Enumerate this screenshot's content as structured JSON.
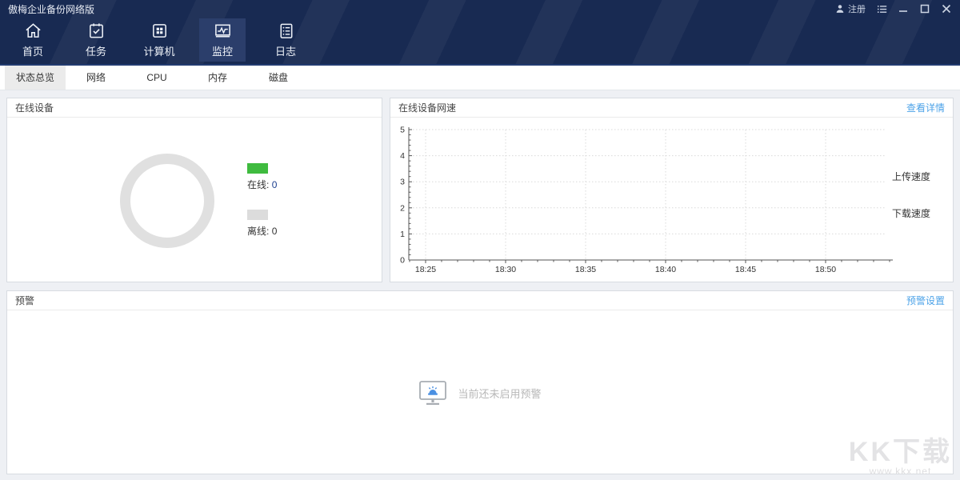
{
  "window": {
    "title": "傲梅企业备份网络版",
    "register_label": "注册"
  },
  "nav": {
    "items": [
      {
        "label": "首页",
        "icon": "home-icon",
        "selected": false
      },
      {
        "label": "任务",
        "icon": "tasks-icon",
        "selected": false
      },
      {
        "label": "计算机",
        "icon": "computers-icon",
        "selected": false
      },
      {
        "label": "监控",
        "icon": "monitor-icon",
        "selected": true
      },
      {
        "label": "日志",
        "icon": "logs-icon",
        "selected": false
      }
    ]
  },
  "tabs": {
    "items": [
      {
        "label": "状态总览",
        "selected": true
      },
      {
        "label": "网络",
        "selected": false
      },
      {
        "label": "CPU",
        "selected": false
      },
      {
        "label": "内存",
        "selected": false
      },
      {
        "label": "磁盘",
        "selected": false
      }
    ]
  },
  "devices_panel": {
    "title": "在线设备",
    "legend": [
      {
        "label": "在线:",
        "value": "0",
        "color": "#3fbb3f",
        "value_color": "#1d3f8f"
      },
      {
        "label": "离线:",
        "value": "0",
        "color": "#dcdcdc",
        "value_color": "#333333"
      }
    ]
  },
  "netspeed_panel": {
    "title": "在线设备网速",
    "details_link": "查看详情",
    "legend": [
      "上传速度",
      "下载速度"
    ]
  },
  "alert_panel": {
    "title": "预警",
    "settings_link": "预警设置",
    "empty_text": "当前还未启用预警"
  },
  "watermark": {
    "title": "KK下载",
    "url": "www.kkx.net"
  },
  "colors": {
    "header_navy": "#182a52",
    "accent_blue": "#4da3e8",
    "online_green": "#3fbb3f",
    "offline_gray": "#dcdcdc"
  },
  "chart_data": [
    {
      "type": "pie",
      "title": "在线设备",
      "slices": [
        {
          "label": "在线",
          "value": 0,
          "color": "#3fbb3f"
        },
        {
          "label": "离线",
          "value": 0,
          "color": "#dcdcdc"
        }
      ]
    },
    {
      "type": "line",
      "title": "在线设备网速",
      "x_ticks": [
        "18:25",
        "18:30",
        "18:35",
        "18:40",
        "18:45",
        "18:50"
      ],
      "y_ticks": [
        0,
        1,
        2,
        3,
        4,
        5
      ],
      "ylim": [
        0,
        5
      ],
      "xlabel": "",
      "ylabel": "",
      "grid": true,
      "legend_position": "right",
      "series": [
        {
          "name": "上传速度",
          "values": []
        },
        {
          "name": "下载速度",
          "values": []
        }
      ]
    }
  ]
}
